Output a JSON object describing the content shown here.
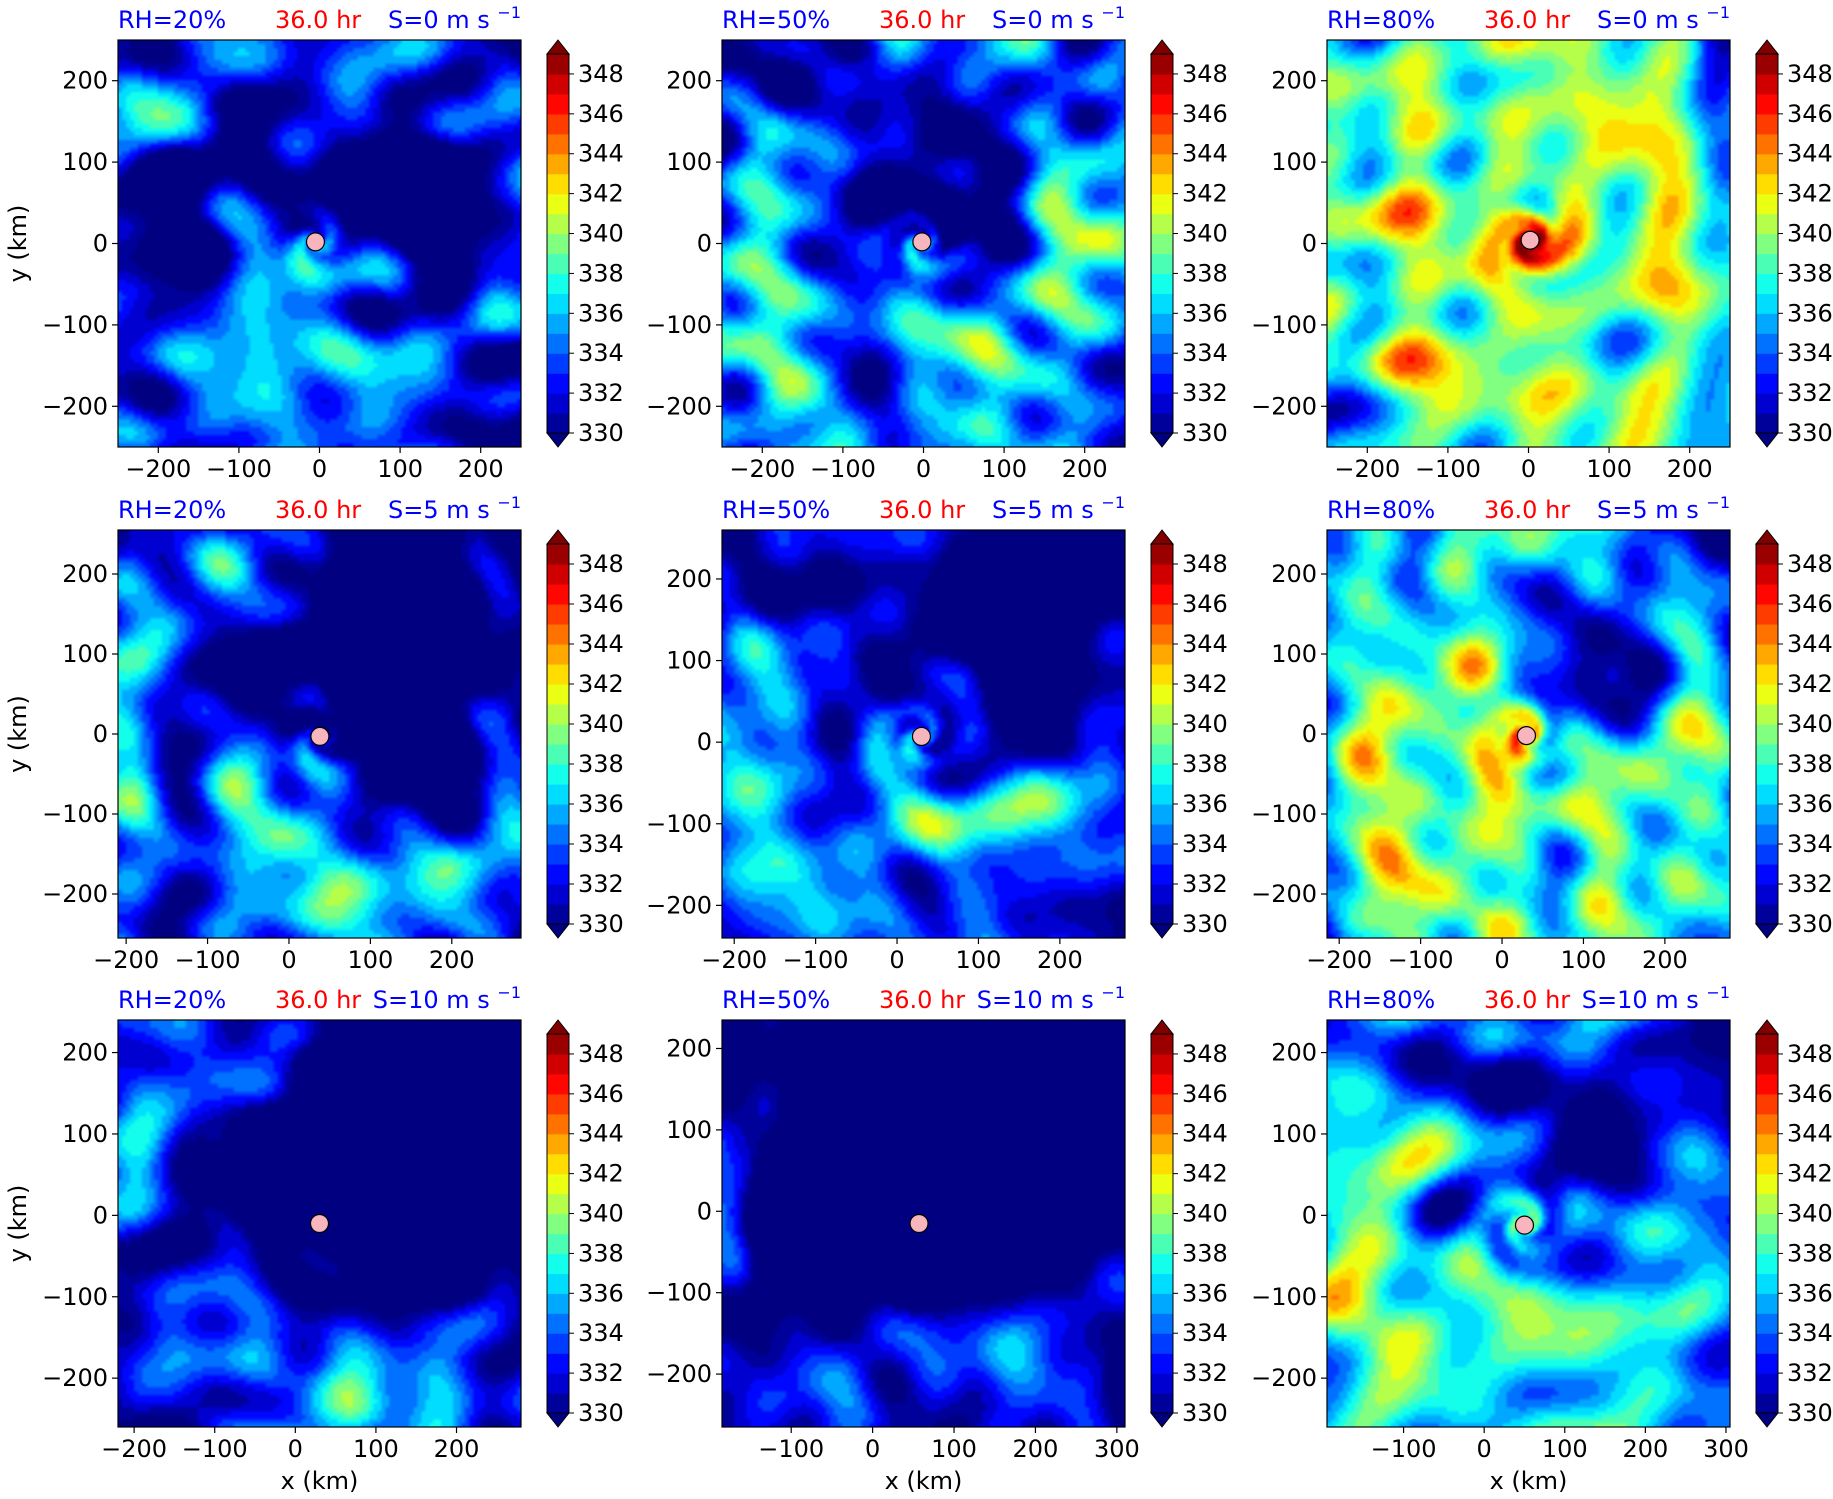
{
  "figure": {
    "shared": {
      "time_label": "36.0 hr",
      "xlabel": "x (km)",
      "ylabel": "y (km)"
    },
    "colors": {
      "title_blue": "#0000ff",
      "title_red": "#ff0000",
      "center_marker_fill": "#f7b6bd",
      "center_marker_edge": "#000000"
    },
    "colormap": {
      "name": "jet",
      "levels": [
        330,
        331,
        332,
        333,
        334,
        335,
        336,
        337,
        338,
        339,
        340,
        341,
        342,
        343,
        344,
        345,
        346,
        347,
        348,
        349
      ],
      "tick_values": [
        330,
        332,
        334,
        336,
        338,
        340,
        342,
        344,
        346,
        348
      ],
      "extend": "both"
    }
  },
  "chart_data": [
    {
      "type": "heatmap",
      "rh_label": "RH=20%",
      "time_label": "36.0 hr",
      "shear_label": "S=0 m s",
      "shear_exp": "−1",
      "xlim": [
        -250,
        250
      ],
      "ylim": [
        -250,
        250
      ],
      "xticks": [
        -200,
        -100,
        0,
        100,
        200
      ],
      "xtick_labels": [
        "−200",
        "−100",
        "0",
        "100",
        "200"
      ],
      "yticks": [
        -200,
        -100,
        0,
        100,
        200
      ],
      "ytick_labels": [
        "−200",
        "−100",
        "0",
        "100",
        "200"
      ],
      "center": [
        -5,
        2
      ],
      "field": {
        "base": 336.0,
        "seed": 11,
        "twist": 2.2,
        "warm_core": 0,
        "dry_patches": 12,
        "shear_dir": 0
      }
    },
    {
      "type": "heatmap",
      "rh_label": "RH=50%",
      "time_label": "36.0 hr",
      "shear_label": "S=0 m s",
      "shear_exp": "−1",
      "xlim": [
        -250,
        250
      ],
      "ylim": [
        -250,
        250
      ],
      "xticks": [
        -200,
        -100,
        0,
        100,
        200
      ],
      "xtick_labels": [
        "−200",
        "−100",
        "0",
        "100",
        "200"
      ],
      "yticks": [
        -200,
        -100,
        0,
        100,
        200
      ],
      "ytick_labels": [
        "−200",
        "−100",
        "0",
        "100",
        "200"
      ],
      "center": [
        -2,
        2
      ],
      "field": {
        "base": 337.0,
        "seed": 23,
        "twist": 2.6,
        "warm_core": 4,
        "dry_patches": 7,
        "shear_dir": 0
      }
    },
    {
      "type": "heatmap",
      "rh_label": "RH=80%",
      "time_label": "36.0 hr",
      "shear_label": "S=0 m s",
      "shear_exp": "−1",
      "xlim": [
        -250,
        250
      ],
      "ylim": [
        -250,
        250
      ],
      "xticks": [
        -200,
        -100,
        0,
        100,
        200
      ],
      "xtick_labels": [
        "−200",
        "−100",
        "0",
        "100",
        "200"
      ],
      "yticks": [
        -200,
        -100,
        0,
        100,
        200
      ],
      "ytick_labels": [
        "−200",
        "−100",
        "0",
        "100",
        "200"
      ],
      "center": [
        2,
        4
      ],
      "field": {
        "base": 339.6,
        "seed": 37,
        "twist": 2.8,
        "warm_core": 11,
        "dry_patches": 0,
        "shear_dir": 0
      }
    },
    {
      "type": "heatmap",
      "rh_label": "RH=20%",
      "time_label": "36.0 hr",
      "shear_label": "S=5 m s",
      "shear_exp": "−1",
      "xlim": [
        -210,
        285
      ],
      "ylim": [
        -255,
        255
      ],
      "xticks": [
        -200,
        -100,
        0,
        100,
        200
      ],
      "xtick_labels": [
        "−200",
        "−100",
        "0",
        "100",
        "200"
      ],
      "yticks": [
        -200,
        -100,
        0,
        100,
        200
      ],
      "ytick_labels": [
        "−200",
        "−100",
        "0",
        "100",
        "200"
      ],
      "center": [
        38,
        -3
      ],
      "field": {
        "base": 335.6,
        "seed": 41,
        "twist": 2.2,
        "warm_core": 0,
        "dry_patches": 9,
        "shear_dir": 1
      }
    },
    {
      "type": "heatmap",
      "rh_label": "RH=50%",
      "time_label": "36.0 hr",
      "shear_label": "S=5 m s",
      "shear_exp": "−1",
      "xlim": [
        -215,
        280
      ],
      "ylim": [
        -240,
        260
      ],
      "xticks": [
        -200,
        -100,
        0,
        100,
        200
      ],
      "xtick_labels": [
        "−200",
        "−100",
        "0",
        "100",
        "200"
      ],
      "yticks": [
        -200,
        -100,
        0,
        100,
        200
      ],
      "ytick_labels": [
        "−200",
        "−100",
        "0",
        "100",
        "200"
      ],
      "center": [
        30,
        7
      ],
      "field": {
        "base": 335.8,
        "seed": 53,
        "twist": 2.6,
        "warm_core": 3,
        "dry_patches": 8,
        "shear_dir": 1
      }
    },
    {
      "type": "heatmap",
      "rh_label": "RH=80%",
      "time_label": "36.0 hr",
      "shear_label": "S=5 m s",
      "shear_exp": "−1",
      "xlim": [
        -215,
        280
      ],
      "ylim": [
        -255,
        255
      ],
      "xticks": [
        -200,
        -100,
        0,
        100,
        200
      ],
      "xtick_labels": [
        "−200",
        "−100",
        "0",
        "100",
        "200"
      ],
      "yticks": [
        -200,
        -100,
        0,
        100,
        200
      ],
      "ytick_labels": [
        "−200",
        "−100",
        "0",
        "100",
        "200"
      ],
      "center": [
        30,
        -2
      ],
      "field": {
        "base": 339.0,
        "seed": 67,
        "twist": 2.7,
        "warm_core": 9,
        "dry_patches": 2,
        "shear_dir": 1
      }
    },
    {
      "type": "heatmap",
      "rh_label": "RH=20%",
      "time_label": "36.0 hr",
      "shear_label": "S=10 m s",
      "shear_exp": "−1",
      "xlim": [
        -220,
        280
      ],
      "ylim": [
        -260,
        240
      ],
      "xticks": [
        -200,
        -100,
        0,
        100,
        200
      ],
      "xtick_labels": [
        "−200",
        "−100",
        "0",
        "100",
        "200"
      ],
      "yticks": [
        -200,
        -100,
        0,
        100,
        200
      ],
      "ytick_labels": [
        "−200",
        "−100",
        "0",
        "100",
        "200"
      ],
      "center": [
        30,
        -10
      ],
      "field": {
        "base": 335.4,
        "seed": 71,
        "twist": 2.1,
        "warm_core": 0,
        "dry_patches": 10,
        "shear_dir": 2
      }
    },
    {
      "type": "heatmap",
      "rh_label": "RH=50%",
      "time_label": "36.0 hr",
      "shear_label": "S=10 m s",
      "shear_exp": "−1",
      "xlim": [
        -185,
        310
      ],
      "ylim": [
        -265,
        235
      ],
      "xticks": [
        -100,
        0,
        100,
        200,
        300
      ],
      "xtick_labels": [
        "−100",
        "0",
        "100",
        "200",
        "300"
      ],
      "yticks": [
        -200,
        -100,
        0,
        100,
        200
      ],
      "ytick_labels": [
        "−200",
        "−100",
        "0",
        "100",
        "200"
      ],
      "center": [
        57,
        -15
      ],
      "field": {
        "base": 335.0,
        "seed": 83,
        "twist": 2.4,
        "warm_core": 2,
        "dry_patches": 11,
        "shear_dir": 2
      }
    },
    {
      "type": "heatmap",
      "rh_label": "RH=80%",
      "time_label": "36.0 hr",
      "shear_label": "S=10 m s",
      "shear_exp": "−1",
      "xlim": [
        -195,
        305
      ],
      "ylim": [
        -260,
        240
      ],
      "xticks": [
        -100,
        0,
        100,
        200,
        300
      ],
      "xtick_labels": [
        "−100",
        "0",
        "100",
        "200",
        "300"
      ],
      "yticks": [
        -200,
        -100,
        0,
        100,
        200
      ],
      "ytick_labels": [
        "−200",
        "−100",
        "0",
        "100",
        "200"
      ],
      "center": [
        50,
        -12
      ],
      "field": {
        "base": 338.6,
        "seed": 97,
        "twist": 2.6,
        "warm_core": 9,
        "dry_patches": 3,
        "shear_dir": 2
      }
    }
  ]
}
